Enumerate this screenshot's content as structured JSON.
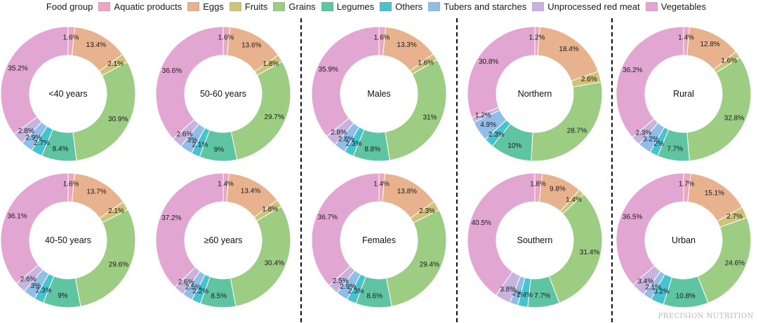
{
  "legend": {
    "title": "Food group",
    "items": [
      {
        "label": "Aquatic products",
        "color": "#eba7bf"
      },
      {
        "label": "Eggs",
        "color": "#e9b28f"
      },
      {
        "label": "Fruits",
        "color": "#d0c17b"
      },
      {
        "label": "Grains",
        "color": "#9ccd83"
      },
      {
        "label": "Legumes",
        "color": "#5ec4a2"
      },
      {
        "label": "Others",
        "color": "#45c4cf"
      },
      {
        "label": "Tubers and starches",
        "color": "#91bde9"
      },
      {
        "label": "Unprocessed red meat",
        "color": "#c8b3de"
      },
      {
        "label": "Vegetables",
        "color": "#e2a6d2"
      }
    ]
  },
  "watermark": "PRECISION NUTRITION",
  "chart_data": [
    {
      "type": "pie",
      "title": "<40 years",
      "categories": [
        "Aquatic products",
        "Eggs",
        "Fruits",
        "Grains",
        "Legumes",
        "Others",
        "Tubers and starches",
        "Unprocessed red meat",
        "Vegetables"
      ],
      "values": [
        1.6,
        13.4,
        2.1,
        30.9,
        8.4,
        2.7,
        2.9,
        2.8,
        35.2
      ]
    },
    {
      "type": "pie",
      "title": "50-60 years",
      "categories": [
        "Aquatic products",
        "Eggs",
        "Fruits",
        "Grains",
        "Legumes",
        "Others",
        "Tubers and starches",
        "Unprocessed red meat",
        "Vegetables"
      ],
      "values": [
        1.6,
        13.6,
        1.8,
        29.7,
        9,
        2.1,
        3,
        2.6,
        36.6
      ]
    },
    {
      "type": "pie",
      "title": "Males",
      "categories": [
        "Aquatic products",
        "Eggs",
        "Fruits",
        "Grains",
        "Legumes",
        "Others",
        "Tubers and starches",
        "Unprocessed red meat",
        "Vegetables"
      ],
      "values": [
        1.6,
        13.3,
        1.6,
        31,
        8.8,
        2.3,
        2.8,
        2.8,
        35.9
      ]
    },
    {
      "type": "pie",
      "title": "Northern",
      "categories": [
        "Aquatic products",
        "Eggs",
        "Fruits",
        "Grains",
        "Legumes",
        "Others",
        "Tubers and starches",
        "Unprocessed red meat",
        "Vegetables"
      ],
      "values": [
        1.2,
        18.4,
        2.6,
        28.7,
        10,
        2.3,
        4.9,
        1.2,
        30.8
      ]
    },
    {
      "type": "pie",
      "title": "Rural",
      "categories": [
        "Aquatic products",
        "Eggs",
        "Fruits",
        "Grains",
        "Legumes",
        "Others",
        "Tubers and starches",
        "Unprocessed red meat",
        "Vegetables"
      ],
      "values": [
        1.4,
        12.8,
        1.6,
        32.8,
        7.7,
        2,
        3.2,
        2.3,
        36.2
      ]
    },
    {
      "type": "pie",
      "title": "40-50 years",
      "categories": [
        "Aquatic products",
        "Eggs",
        "Fruits",
        "Grains",
        "Legumes",
        "Others",
        "Tubers and starches",
        "Unprocessed red meat",
        "Vegetables"
      ],
      "values": [
        1.6,
        13.7,
        2.1,
        29.6,
        9,
        2.3,
        3,
        2.6,
        36.1
      ]
    },
    {
      "type": "pie",
      "title": "≥60 years",
      "categories": [
        "Aquatic products",
        "Eggs",
        "Fruits",
        "Grains",
        "Legumes",
        "Others",
        "Tubers and starches",
        "Unprocessed red meat",
        "Vegetables"
      ],
      "values": [
        1.4,
        13.4,
        1.8,
        30.4,
        8.5,
        2.2,
        2.5,
        2.6,
        37.2
      ]
    },
    {
      "type": "pie",
      "title": "Females",
      "categories": [
        "Aquatic products",
        "Eggs",
        "Fruits",
        "Grains",
        "Legumes",
        "Others",
        "Tubers and starches",
        "Unprocessed red meat",
        "Vegetables"
      ],
      "values": [
        1.4,
        13.8,
        2.3,
        29.4,
        8.6,
        2.3,
        2.9,
        2.5,
        36.7
      ]
    },
    {
      "type": "pie",
      "title": "Southern",
      "categories": [
        "Aquatic products",
        "Eggs",
        "Fruits",
        "Grains",
        "Legumes",
        "Others",
        "Tubers and starches",
        "Unprocessed red meat",
        "Vegetables"
      ],
      "values": [
        1.8,
        9.8,
        1.4,
        31.4,
        7.7,
        2.4,
        2,
        3.8,
        40.5
      ]
    },
    {
      "type": "pie",
      "title": "Urban",
      "categories": [
        "Aquatic products",
        "Eggs",
        "Fruits",
        "Grains",
        "Legumes",
        "Others",
        "Tubers and starches",
        "Unprocessed red meat",
        "Vegetables"
      ],
      "values": [
        1.7,
        15.1,
        2.7,
        24.6,
        10.8,
        3.2,
        2.1,
        3.4,
        36.5
      ]
    }
  ]
}
